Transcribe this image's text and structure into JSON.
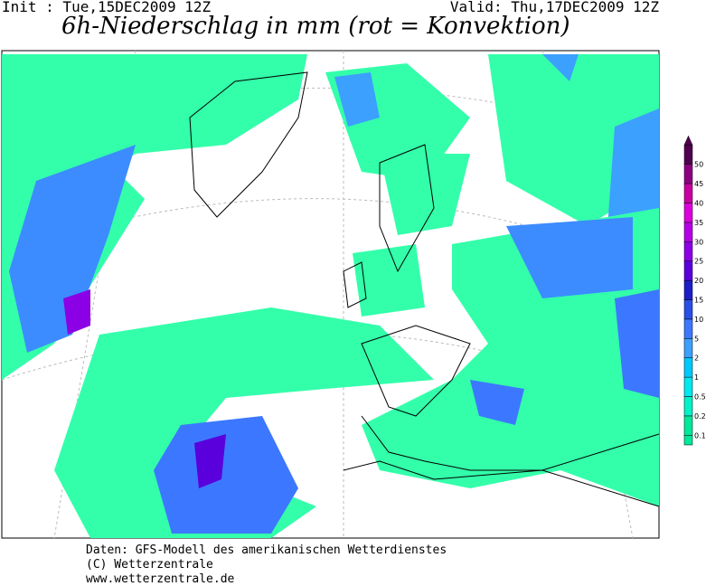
{
  "header": {
    "init": "Init : Tue,15DEC2009 12Z",
    "valid": "Valid: Thu,17DEC2009 12Z",
    "title": "6h-Niederschlag in mm (rot = Konvektion)"
  },
  "legend": {
    "levels": [
      {
        "label": "0.1",
        "color": "#00e89a"
      },
      {
        "label": "0.2",
        "color": "#00f2c8"
      },
      {
        "label": "0.5",
        "color": "#00e8f0"
      },
      {
        "label": "1",
        "color": "#00c8ff"
      },
      {
        "label": "2",
        "color": "#3ca0ff"
      },
      {
        "label": "5",
        "color": "#3c78ff"
      },
      {
        "label": "10",
        "color": "#2850e6"
      },
      {
        "label": "15",
        "color": "#1e1ec8"
      },
      {
        "label": "20",
        "color": "#5a00dc"
      },
      {
        "label": "25",
        "color": "#8c00e6"
      },
      {
        "label": "30",
        "color": "#b400e6"
      },
      {
        "label": "35",
        "color": "#dc00dc"
      },
      {
        "label": "40",
        "color": "#c800a0"
      },
      {
        "label": "45",
        "color": "#8c0080"
      },
      {
        "label": "50",
        "color": "#500050"
      }
    ]
  },
  "footer": {
    "lines": [
      "Daten: GFS-Modell des amerikanischen Wetterdienstes",
      "(C) Wetterzentrale",
      "www.wetterzentrale.de"
    ]
  }
}
